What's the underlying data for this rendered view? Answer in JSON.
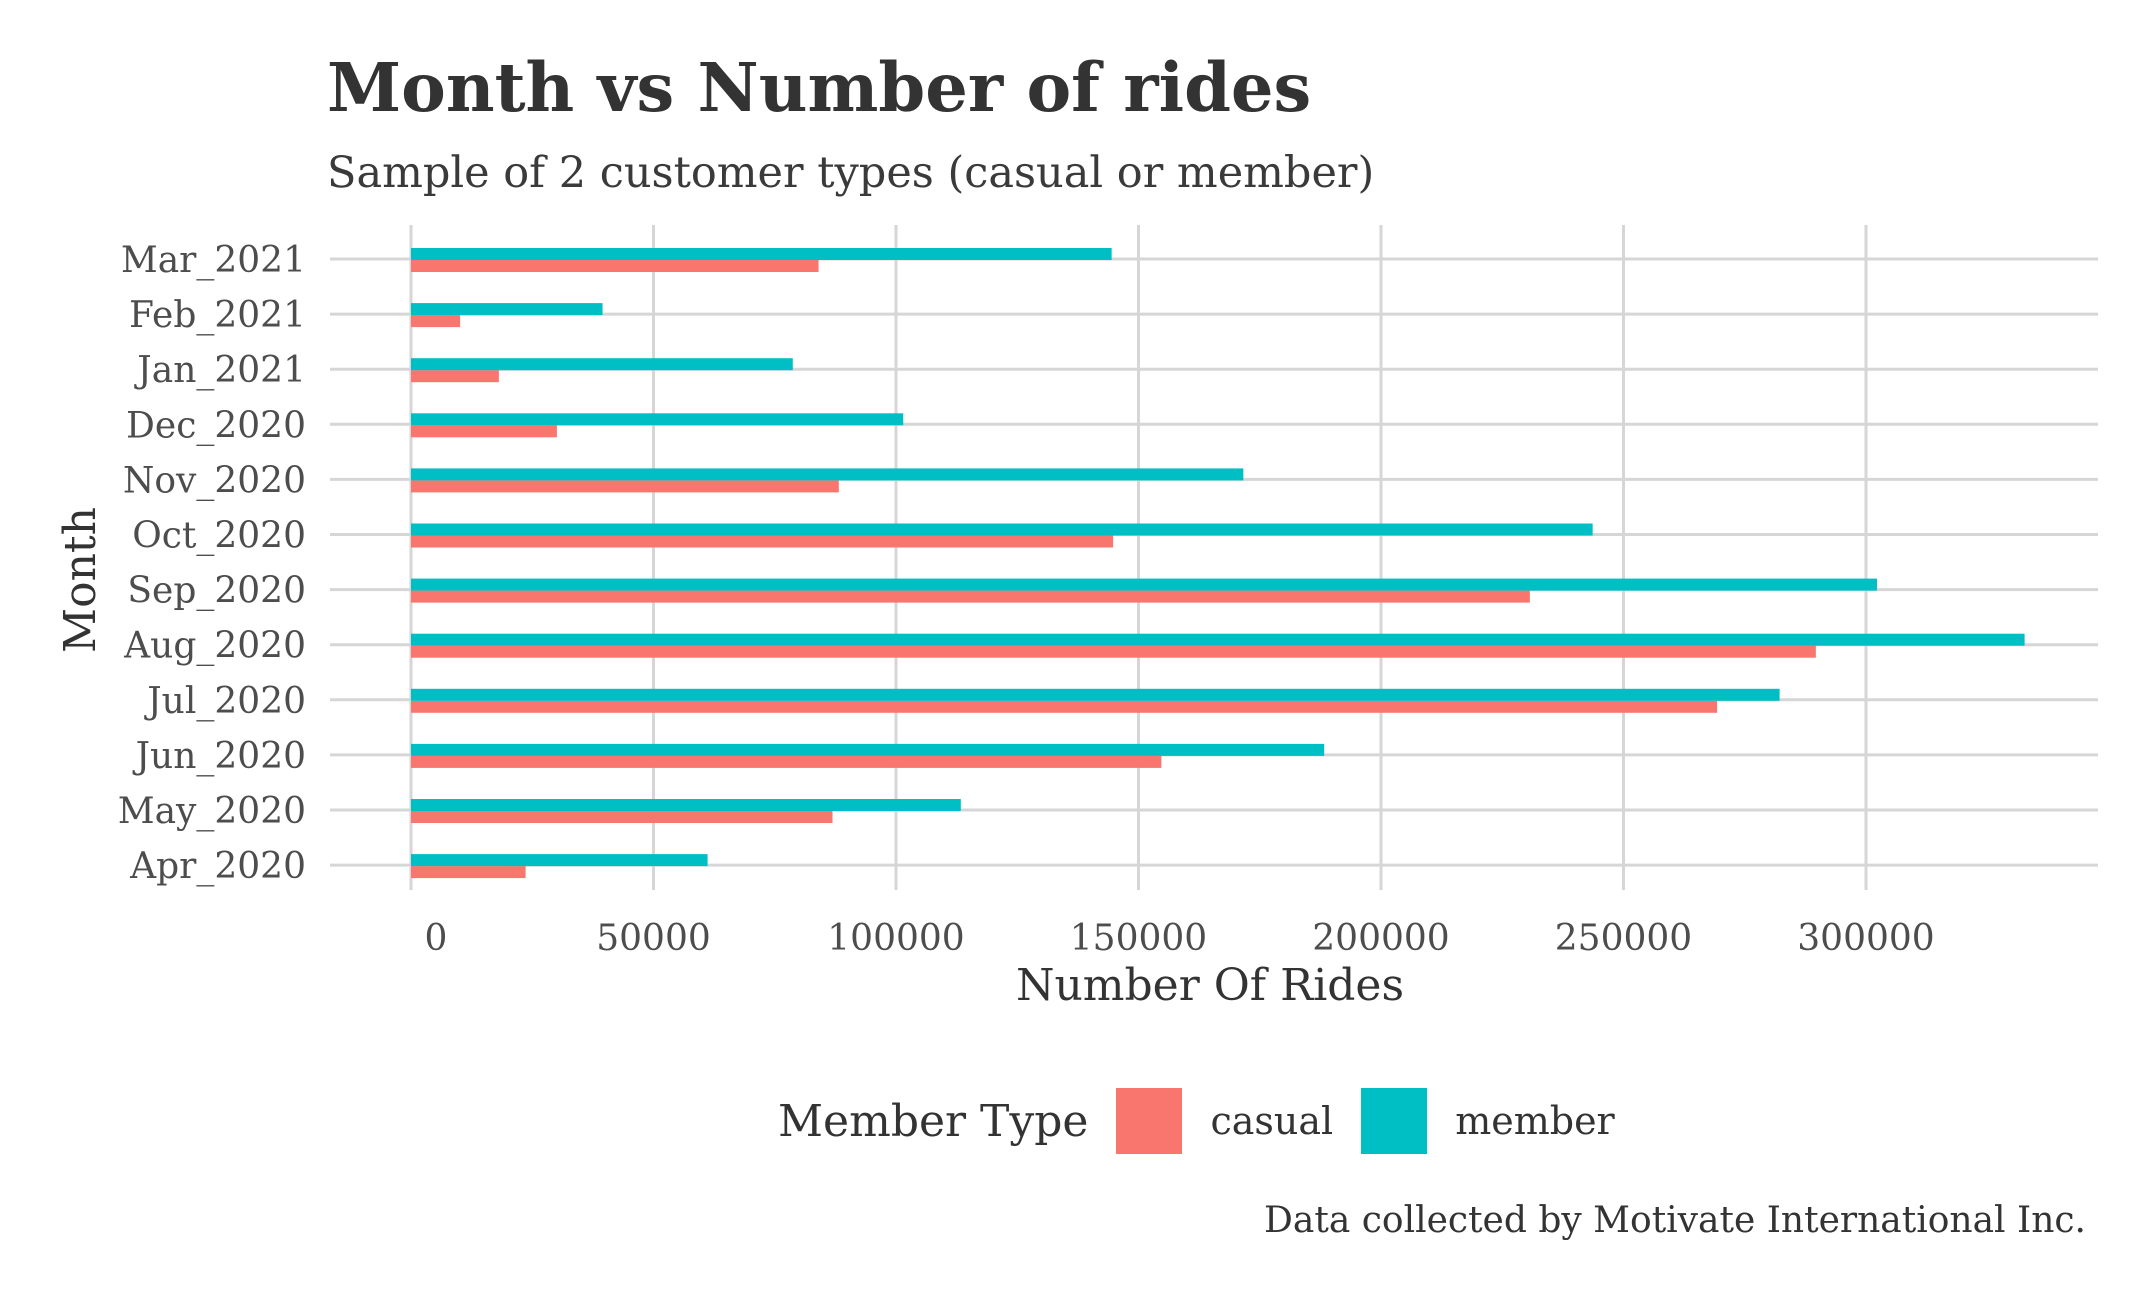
{
  "chart_data": {
    "type": "bar",
    "orientation": "horizontal",
    "title": "Month vs Number of rides",
    "subtitle": "Sample of 2 customer types (casual or member)",
    "xlabel": "Number Of Rides",
    "ylabel": "Month",
    "caption": "Data collected by Motivate International Inc.",
    "xlim": [
      0,
      340000
    ],
    "x_ticks": [
      0,
      50000,
      100000,
      150000,
      200000,
      250000,
      300000
    ],
    "x_tick_labels": [
      "0",
      "50000",
      "100000",
      "150000",
      "200000",
      "250000",
      "300000"
    ],
    "grid": true,
    "legend_position": "bottom",
    "legend_title": "Member Type",
    "categories": [
      "Apr_2020",
      "May_2020",
      "Jun_2020",
      "Jul_2020",
      "Aug_2020",
      "Sep_2020",
      "Oct_2020",
      "Nov_2020",
      "Dec_2020",
      "Jan_2021",
      "Feb_2021",
      "Mar_2021"
    ],
    "series": [
      {
        "name": "casual",
        "color": "#F8766D",
        "values": [
          23628,
          86909,
          154718,
          269296,
          289661,
          230693,
          144772,
          88207,
          30080,
          18117,
          10131,
          84033
        ]
      },
      {
        "name": "member",
        "color": "#00BFC4",
        "values": [
          61148,
          113365,
          188287,
          282184,
          332700,
          302266,
          243641,
          171617,
          101493,
          78717,
          39491,
          144463
        ]
      }
    ]
  }
}
